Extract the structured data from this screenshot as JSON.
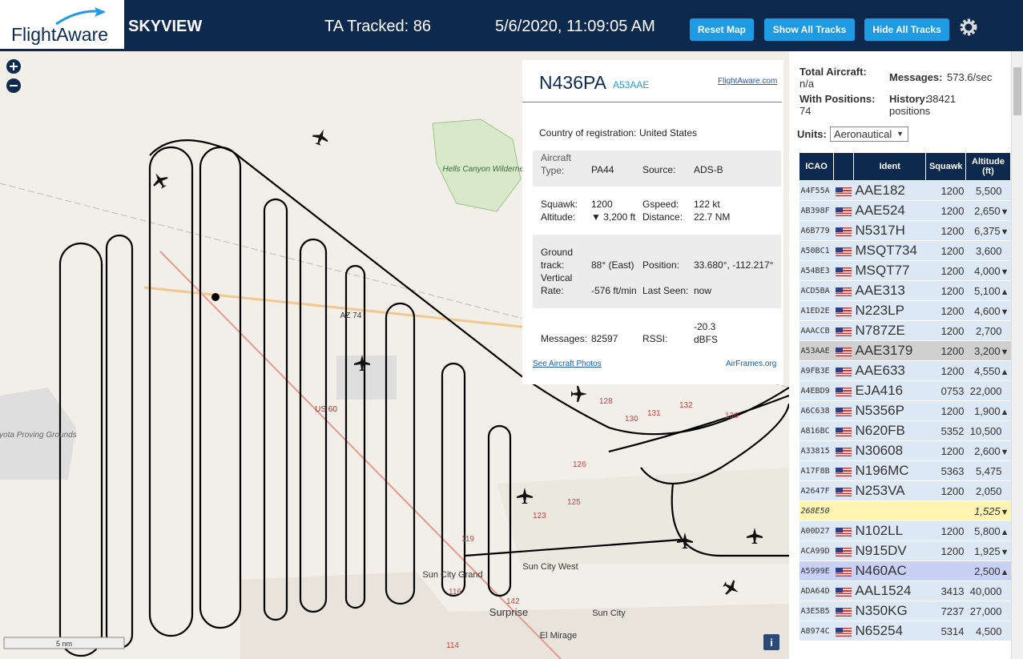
{
  "header": {
    "logo": "FlightAware",
    "app": "SKYVIEW",
    "tracked": "TA Tracked: 86",
    "datetime": "5/6/2020, 11:09:05 AM",
    "buttons": [
      "Reset Map",
      "Show All Tracks",
      "Hide All Tracks"
    ]
  },
  "map": {
    "labels": [
      "Hells Canyon Wilderness Area",
      "Toyota Proving Grounds",
      "Sun City Grand",
      "Sun City West",
      "Surprise",
      "Sun City",
      "El Mirage",
      "AZ 74",
      "US 60",
      "128",
      "130",
      "131",
      "132",
      "136",
      "126",
      "123",
      "125",
      "119",
      "116",
      "114",
      "142"
    ],
    "scale": "5 nm"
  },
  "info": {
    "callsign": "N436PA",
    "hex": "A53AAE",
    "link": "FlightAware.com",
    "fields": [
      [
        "Country of registration:",
        "United States"
      ],
      [
        "Aircraft Type:",
        "PA44"
      ],
      [
        "Source:",
        "ADS-B"
      ],
      [
        "Squawk:",
        "1200"
      ],
      [
        "Gspeed:",
        "122 kt"
      ],
      [
        "Altitude:",
        "▼ 3,200 ft"
      ],
      [
        "Distance:",
        "22.7 NM"
      ],
      [
        "Ground track:",
        "88° (East)"
      ],
      [
        "Position:",
        "33.680°, -112.217°"
      ],
      [
        "Vertical Rate:",
        "-576 ft/min"
      ],
      [
        "Last Seen:",
        "now"
      ],
      [
        "Messages:",
        "82597"
      ],
      [
        "RSSI:",
        "-20.3 dBFS"
      ]
    ],
    "photos": "See Aircraft Photos",
    "airframes": "AirFrames.org"
  },
  "sidebar": {
    "stats": [
      [
        "Total Aircraft:",
        "n/a"
      ],
      [
        "Messages:",
        "573.6/sec"
      ],
      [
        "With Positions:",
        "74"
      ],
      [
        "History:",
        "38421 positions"
      ]
    ],
    "units_label": "Units:",
    "units": "Aeronautical",
    "columns": [
      "ICAO",
      "Ident",
      "Squawk",
      "Altitude (ft)"
    ],
    "rows": [
      {
        "icao": "A4F55A",
        "ident": "AAE182",
        "squawk": "1200",
        "altitude": "5,500"
      },
      {
        "icao": "AB398F",
        "ident": "AAE524",
        "squawk": "1200",
        "altitude": "2,650",
        "trend": "▼"
      },
      {
        "icao": "A6B779",
        "ident": "N5317H",
        "squawk": "1200",
        "altitude": "6,375",
        "trend": "▼"
      },
      {
        "icao": "A50BC1",
        "ident": "MSQT734",
        "squawk": "1200",
        "altitude": "3,600"
      },
      {
        "icao": "A54BE3",
        "ident": "MSQT77",
        "squawk": "1200",
        "altitude": "4,000",
        "trend": "▼"
      },
      {
        "icao": "ACD5BA",
        "ident": "AAE313",
        "squawk": "1200",
        "altitude": "5,100",
        "trend": "▲"
      },
      {
        "icao": "A1ED2E",
        "ident": "N223LP",
        "squawk": "1200",
        "altitude": "4,600",
        "trend": "▼"
      },
      {
        "icao": "AAACCB",
        "ident": "N787ZE",
        "squawk": "1200",
        "altitude": "2,700"
      },
      {
        "icao": "A53AAE",
        "ident": "AAE3179",
        "squawk": "1200",
        "altitude": "3,200",
        "trend": "▼",
        "state": "selected"
      },
      {
        "icao": "A9FB3E",
        "ident": "AAE633",
        "squawk": "1200",
        "altitude": "4,550",
        "trend": "▲"
      },
      {
        "icao": "A4EBD9",
        "ident": "EJA416",
        "squawk": "0753",
        "altitude": "22,000"
      },
      {
        "icao": "A6C638",
        "ident": "N5356P",
        "squawk": "1200",
        "altitude": "1,900",
        "trend": "▲"
      },
      {
        "icao": "A816BC",
        "ident": "N620FB",
        "squawk": "5352",
        "altitude": "10,500"
      },
      {
        "icao": "A33815",
        "ident": "N30608",
        "squawk": "1200",
        "altitude": "2,600",
        "trend": "▼"
      },
      {
        "icao": "A17F8B",
        "ident": "N196MC",
        "squawk": "5363",
        "altitude": "5,475"
      },
      {
        "icao": "A2647F",
        "ident": "N253VA",
        "squawk": "1200",
        "altitude": "2,050"
      },
      {
        "icao": "268E50",
        "altitude": "1,525",
        "trend": "▼",
        "state": "nolocation"
      },
      {
        "icao": "A00D27",
        "ident": "N102LL",
        "squawk": "1200",
        "altitude": "5,800",
        "trend": "▲"
      },
      {
        "icao": "ACA99D",
        "ident": "N915DV",
        "squawk": "1200",
        "altitude": "1,925",
        "trend": "▼"
      },
      {
        "icao": "A5999E",
        "ident": "N460AC",
        "altitude": "2,500",
        "trend": "▲",
        "state": "highlight"
      },
      {
        "icao": "ADA64D",
        "ident": "AAL1524",
        "squawk": "3413",
        "altitude": "40,000"
      },
      {
        "icao": "A3E5B5",
        "ident": "N350KG",
        "squawk": "7237",
        "altitude": "27,000"
      },
      {
        "icao": "A8974C",
        "ident": "N65254",
        "squawk": "5314",
        "altitude": "4,500"
      }
    ]
  }
}
